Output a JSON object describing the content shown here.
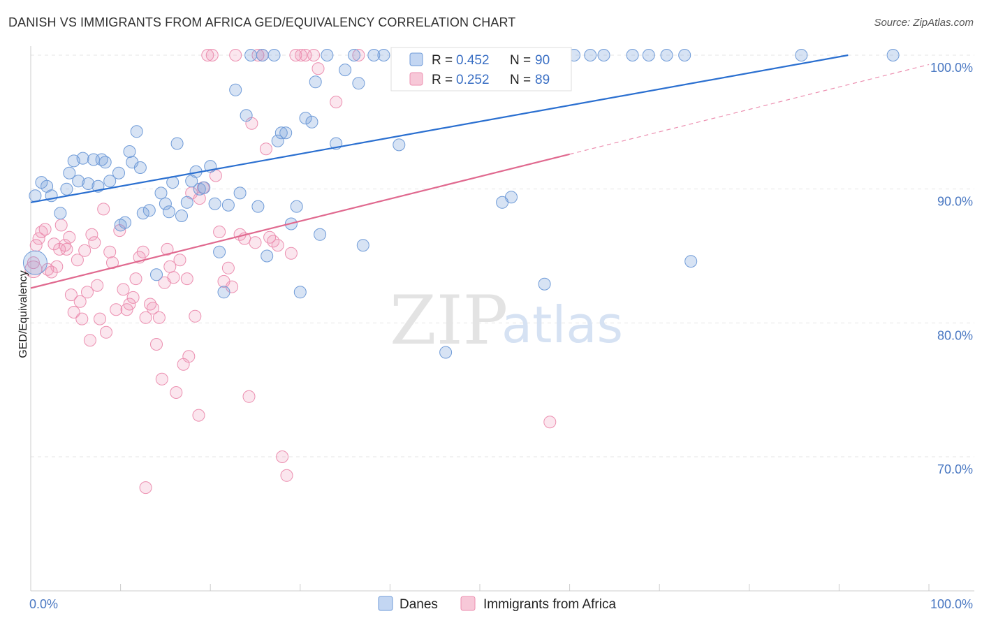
{
  "title": "DANISH VS IMMIGRANTS FROM AFRICA GED/EQUIVALENCY CORRELATION CHART",
  "source": "Source: ZipAtlas.com",
  "watermark": {
    "zip": "ZIP",
    "atlas": "atlas"
  },
  "colors": {
    "blue": "#6f9bd8",
    "blue_line": "#2a6fd0",
    "pink": "#ec8fb0",
    "pink_line": "#e0698f"
  },
  "chart_data": {
    "type": "scatter",
    "xlabel": "",
    "ylabel": "GED/Equivalency",
    "xlim": [
      0,
      100
    ],
    "ylim": [
      60,
      100
    ],
    "x_tick_labels": [
      {
        "value": 0,
        "label": "0.0%"
      },
      {
        "value": 100,
        "label": "100.0%"
      }
    ],
    "y_tick_labels": [
      {
        "value": 100,
        "label": "100.0%"
      },
      {
        "value": 90,
        "label": "90.0%"
      },
      {
        "value": 80,
        "label": "80.0%"
      },
      {
        "value": 70,
        "label": "70.0%"
      }
    ],
    "legend": {
      "stats": [
        {
          "r_label": "R =",
          "r": "0.452",
          "n_label": "N =",
          "n": "90"
        },
        {
          "r_label": "R =",
          "r": "0.252",
          "n_label": "N =",
          "n": "89"
        }
      ],
      "names": [
        "Danes",
        "Immigrants from Africa"
      ]
    },
    "series": [
      {
        "name": "Danes",
        "trend": {
          "x": [
            0,
            91
          ],
          "y": [
            89.0,
            100.0
          ]
        },
        "points": [
          [
            0.5,
            89.5
          ],
          [
            1.2,
            90.5
          ],
          [
            1.8,
            90.2
          ],
          [
            2.3,
            89.5
          ],
          [
            3.3,
            88.2
          ],
          [
            4,
            90.0
          ],
          [
            4.3,
            91.2
          ],
          [
            4.8,
            92.1
          ],
          [
            5.3,
            90.6
          ],
          [
            5.8,
            92.3
          ],
          [
            6.4,
            90.4
          ],
          [
            7.0,
            92.2
          ],
          [
            7.5,
            90.2
          ],
          [
            7.9,
            92.2
          ],
          [
            8.3,
            92.0
          ],
          [
            8.8,
            90.6
          ],
          [
            9.8,
            91.2
          ],
          [
            10.0,
            87.3
          ],
          [
            10.5,
            87.5
          ],
          [
            11.0,
            92.8
          ],
          [
            11.3,
            92.0
          ],
          [
            11.8,
            94.3
          ],
          [
            12.2,
            91.6
          ],
          [
            12.5,
            88.2
          ],
          [
            13.2,
            88.4
          ],
          [
            14,
            83.6
          ],
          [
            14.5,
            89.7
          ],
          [
            15.0,
            88.9
          ],
          [
            15.4,
            88.3
          ],
          [
            15.8,
            90.5
          ],
          [
            16.3,
            93.4
          ],
          [
            16.8,
            88.0
          ],
          [
            17.4,
            89.0
          ],
          [
            17.9,
            90.6
          ],
          [
            18.4,
            91.3
          ],
          [
            18.8,
            90.0
          ],
          [
            19.3,
            90.1
          ],
          [
            20.0,
            91.7
          ],
          [
            20.5,
            88.9
          ],
          [
            21.0,
            85.3
          ],
          [
            21.5,
            82.3
          ],
          [
            22.0,
            88.8
          ],
          [
            22.8,
            97.4
          ],
          [
            23.3,
            89.7
          ],
          [
            24.0,
            95.5
          ],
          [
            24.5,
            100
          ],
          [
            25.3,
            88.7
          ],
          [
            25.8,
            100
          ],
          [
            26.3,
            85.0
          ],
          [
            27.1,
            100
          ],
          [
            27.5,
            93.6
          ],
          [
            27.9,
            94.2
          ],
          [
            28.4,
            94.2
          ],
          [
            29.0,
            87.4
          ],
          [
            29.6,
            88.7
          ],
          [
            30.0,
            82.3
          ],
          [
            30.6,
            95.3
          ],
          [
            31.3,
            95.0
          ],
          [
            31.7,
            98.0
          ],
          [
            32.2,
            86.6
          ],
          [
            33.0,
            100
          ],
          [
            34.0,
            93.4
          ],
          [
            35.0,
            98.9
          ],
          [
            36.0,
            100
          ],
          [
            36.5,
            97.9
          ],
          [
            37.0,
            85.8
          ],
          [
            38.2,
            100
          ],
          [
            39.3,
            100
          ],
          [
            41,
            93.3
          ],
          [
            44.8,
            100
          ],
          [
            46.2,
            77.8
          ],
          [
            46.8,
            100
          ],
          [
            48.3,
            100
          ],
          [
            52.5,
            89.0
          ],
          [
            53.5,
            89.4
          ],
          [
            54.0,
            100
          ],
          [
            54.8,
            100
          ],
          [
            56.3,
            100
          ],
          [
            57.2,
            82.9
          ],
          [
            58.0,
            100
          ],
          [
            58.8,
            100
          ],
          [
            60.5,
            100
          ],
          [
            62.3,
            100
          ],
          [
            63.8,
            100
          ],
          [
            67.0,
            100
          ],
          [
            68.8,
            100
          ],
          [
            70.8,
            100
          ],
          [
            72.8,
            100
          ],
          [
            73.5,
            84.6
          ],
          [
            85.8,
            100
          ],
          [
            96.0,
            100
          ]
        ]
      },
      {
        "name": "Immigrants from Africa",
        "trend": {
          "x": [
            0,
            60
          ],
          "y": [
            82.6,
            92.6
          ]
        },
        "trend_extension": {
          "x": [
            60,
            100
          ],
          "y": [
            92.6,
            99.3
          ]
        },
        "points": [
          [
            0.3,
            84.5
          ],
          [
            0.6,
            85.8
          ],
          [
            0.9,
            86.3
          ],
          [
            1.2,
            86.8
          ],
          [
            1.6,
            87.0
          ],
          [
            1.9,
            84.0
          ],
          [
            2.3,
            83.8
          ],
          [
            2.6,
            85.9
          ],
          [
            2.9,
            84.2
          ],
          [
            3.2,
            85.5
          ],
          [
            3.4,
            87.3
          ],
          [
            3.8,
            85.8
          ],
          [
            4.0,
            85.5
          ],
          [
            4.3,
            86.4
          ],
          [
            4.5,
            82.1
          ],
          [
            4.8,
            80.8
          ],
          [
            5.2,
            84.7
          ],
          [
            5.5,
            81.6
          ],
          [
            5.7,
            80.3
          ],
          [
            6.0,
            85.4
          ],
          [
            6.3,
            82.3
          ],
          [
            6.6,
            78.7
          ],
          [
            6.8,
            86.6
          ],
          [
            7.1,
            86.0
          ],
          [
            7.4,
            82.8
          ],
          [
            7.7,
            80.3
          ],
          [
            8.1,
            88.5
          ],
          [
            8.4,
            79.3
          ],
          [
            8.8,
            85.3
          ],
          [
            9.1,
            84.5
          ],
          [
            9.5,
            81.0
          ],
          [
            9.9,
            86.9
          ],
          [
            10.3,
            82.5
          ],
          [
            10.7,
            81.0
          ],
          [
            11.0,
            81.4
          ],
          [
            11.4,
            81.9
          ],
          [
            11.7,
            83.3
          ],
          [
            12.1,
            84.9
          ],
          [
            12.5,
            85.3
          ],
          [
            12.8,
            80.4
          ],
          [
            13.3,
            81.4
          ],
          [
            13.6,
            81.1
          ],
          [
            14.0,
            78.4
          ],
          [
            14.3,
            80.4
          ],
          [
            14.6,
            75.8
          ],
          [
            14.9,
            83.0
          ],
          [
            15.2,
            85.5
          ],
          [
            15.5,
            84.2
          ],
          [
            15.9,
            83.4
          ],
          [
            16.2,
            74.8
          ],
          [
            16.6,
            84.7
          ],
          [
            17.0,
            76.9
          ],
          [
            17.4,
            83.3
          ],
          [
            17.6,
            77.5
          ],
          [
            17.9,
            89.7
          ],
          [
            18.3,
            80.5
          ],
          [
            18.8,
            89.3
          ],
          [
            19.2,
            90.1
          ],
          [
            19.7,
            100
          ],
          [
            20.2,
            100
          ],
          [
            20.6,
            91.0
          ],
          [
            21.0,
            86.8
          ],
          [
            21.5,
            83.1
          ],
          [
            22.0,
            84.1
          ],
          [
            22.4,
            82.7
          ],
          [
            22.8,
            100
          ],
          [
            23.3,
            86.6
          ],
          [
            23.8,
            86.3
          ],
          [
            24.3,
            74.5
          ],
          [
            24.6,
            94.9
          ],
          [
            25.0,
            86.0
          ],
          [
            25.3,
            100
          ],
          [
            25.8,
            100
          ],
          [
            26.2,
            93.0
          ],
          [
            26.6,
            86.4
          ],
          [
            27.0,
            86.1
          ],
          [
            27.5,
            85.8
          ],
          [
            28.0,
            70.0
          ],
          [
            28.5,
            68.6
          ],
          [
            29.0,
            85.2
          ],
          [
            29.5,
            100
          ],
          [
            30.1,
            100
          ],
          [
            30.6,
            100
          ],
          [
            31.5,
            100
          ],
          [
            32.0,
            99.0
          ],
          [
            34.0,
            96.5
          ],
          [
            36.5,
            100
          ],
          [
            12.8,
            67.7
          ],
          [
            18.7,
            73.1
          ],
          [
            57.8,
            72.6
          ]
        ]
      }
    ]
  }
}
